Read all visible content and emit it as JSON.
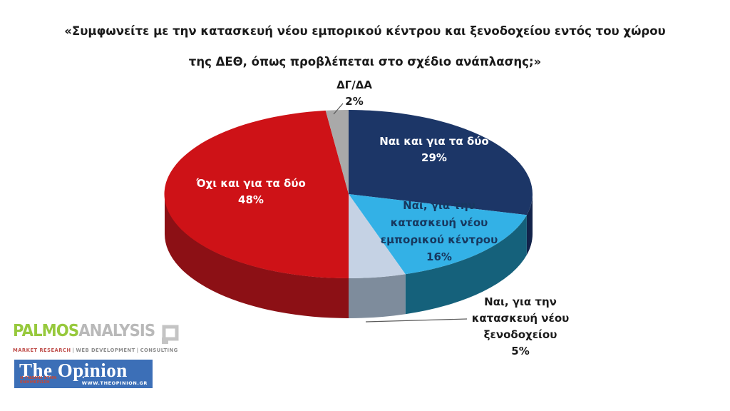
{
  "title": {
    "line1": "«Συμφωνείτε με την κατασκευή νέου εμπορικού κέντρου και ξενοδοχείου εντός του χώρου",
    "line2": "της ΔΕΘ, όπως προβλέπεται στο σχέδιο ανάπλασης;»"
  },
  "chart_data": {
    "type": "pie",
    "style": "3d",
    "title": "«Συμφωνείτε με την κατασκευή νέου εμπορικού κέντρου και ξενοδοχείου εντός του χώρου της ΔΕΘ, όπως προβλέπεται στο σχέδιο ανάπλασης;»",
    "direction": "clockwise",
    "start_angle_deg": 0,
    "legend": "none",
    "slices": [
      {
        "label": "Ναι και για τα δύο",
        "value": 29,
        "display": "29%",
        "color": "#1C3667",
        "side_color": "#12234A",
        "label_color": "#ffffff",
        "label_position": "inside"
      },
      {
        "label": "Ναι, για την κατασκευή νέου εμπορικού κέντρου",
        "value": 16,
        "display": "16%",
        "color": "#33B1E6",
        "side_color": "#15617B",
        "label_color": "#17375E",
        "label_position": "inside"
      },
      {
        "label": "Ναι, για την κατασκευή νέου ξενοδοχείου",
        "value": 5,
        "display": "5%",
        "color": "#C5D2E4",
        "side_color": "#7E8C9C",
        "label_color": "#1a1a1a",
        "label_position": "outside-leader-line"
      },
      {
        "label": "Όχι και για τα δύο",
        "value": 48,
        "display": "48%",
        "color": "#CE1217",
        "side_color": "#8C1015",
        "label_color": "#ffffff",
        "label_position": "inside"
      },
      {
        "label": "ΔΓ/ΔΑ",
        "value": 2,
        "display": "2%",
        "color": "#A9A9A9",
        "side_color": "#7f7f7f",
        "label_color": "#1a1a1a",
        "label_position": "outside-leader-line"
      }
    ]
  },
  "footer": {
    "palmos": {
      "name_primary": "PALMOS",
      "name_secondary": "ANALYSIS",
      "tagline_parts": [
        "MARKET RESEARCH",
        "WEB DEVELOPMENT",
        "CONSULTING"
      ],
      "colors": {
        "primary": "#97C93D",
        "secondary": "#b9b9b9",
        "tagline_first": "#C0504D"
      }
    },
    "opinion": {
      "name": "The Opinion",
      "tagline": "Η ΓΝΩΜΗ ΣΤΗΝ ΕΝΗΜΕΡΩΣΗ",
      "website": "WWW.THEOPINION.GR",
      "colors": {
        "background": "#3C6FB7",
        "text": "#ffffff",
        "tagline": "#C74634"
      }
    }
  }
}
